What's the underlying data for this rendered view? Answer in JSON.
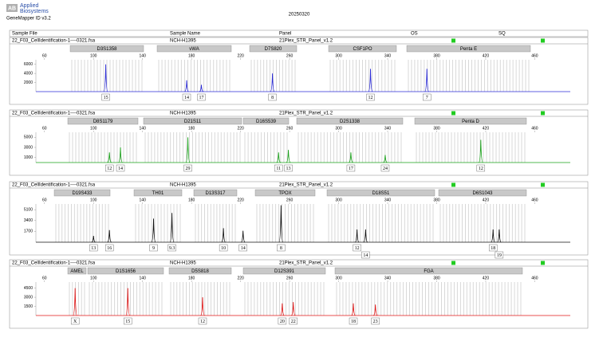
{
  "header": {
    "brand": [
      "Applied",
      "Biosystems"
    ],
    "software": "GeneMapper ID v3.2",
    "date": "20250320"
  },
  "columns": [
    "Sample File",
    "Sample Name",
    "Panel",
    "OS",
    "SQ"
  ],
  "chart_data": [
    {
      "type": "electropherogram",
      "sample_file": "22_F03_CellIdentification-1----0321.fsa",
      "sample_name": "NCH-H1395",
      "panel": "21Plex_STR_Panel_v1.2",
      "color": "#2b2bd6",
      "markers": [
        "D3S1358",
        "vWA",
        "D7S820",
        "CSF1PO",
        "Penta E"
      ],
      "xlim": [
        53,
        489
      ],
      "xticks": [
        60,
        100,
        140,
        180,
        220,
        260,
        300,
        340,
        380,
        420,
        460
      ],
      "ylim": [
        0,
        7000
      ],
      "yticks": [
        2000,
        4000,
        6000
      ],
      "peaks": [
        {
          "size": 110,
          "height": 6000,
          "allele": "15"
        },
        {
          "size": 176,
          "height": 2500,
          "allele": "14"
        },
        {
          "size": 188,
          "height": 1500,
          "allele": "17"
        },
        {
          "size": 246,
          "height": 4000,
          "allele": "8"
        },
        {
          "size": 326,
          "height": 5000,
          "allele": "12"
        },
        {
          "size": 372,
          "height": 5000,
          "allele": "7"
        }
      ]
    },
    {
      "type": "electropherogram",
      "sample_file": "22_F03_CellIdentification-1----0321.fsa",
      "sample_name": "NCH-H1395",
      "panel": "21Plex_STR_Panel_v1.2",
      "color": "#1aa01a",
      "markers": [
        "D8S1179",
        "D21S11",
        "D16S539",
        "D2S1338",
        "Penta D"
      ],
      "xlim": [
        53,
        489
      ],
      "xticks": [
        60,
        100,
        140,
        180,
        220,
        260,
        300,
        340,
        380,
        420,
        460
      ],
      "ylim": [
        0,
        6000
      ],
      "yticks": [
        1000,
        3000,
        5000
      ],
      "peaks": [
        {
          "size": 113,
          "height": 2000,
          "allele": "12"
        },
        {
          "size": 122,
          "height": 3000,
          "allele": "14"
        },
        {
          "size": 177,
          "height": 5000,
          "allele": "29"
        },
        {
          "size": 251,
          "height": 2000,
          "allele": "11"
        },
        {
          "size": 259,
          "height": 2500,
          "allele": "13"
        },
        {
          "size": 310,
          "height": 2000,
          "allele": "17"
        },
        {
          "size": 338,
          "height": 1500,
          "allele": "24"
        },
        {
          "size": 416,
          "height": 4500,
          "allele": "12"
        }
      ]
    },
    {
      "type": "electropherogram",
      "sample_file": "22_F03_CellIdentification-1----0321.fsa",
      "sample_name": "NCH-H1395",
      "panel": "21Plex_STR_Panel_v1.2",
      "color": "#111111",
      "markers": [
        "D19S433",
        "TH01",
        "D13S317",
        "TPOX",
        "D18S51",
        "D6S1043"
      ],
      "xlim": [
        53,
        489
      ],
      "xticks": [
        60,
        100,
        140,
        180,
        220,
        260,
        300,
        340,
        380,
        420,
        460
      ],
      "ylim": [
        0,
        6000
      ],
      "yticks": [
        1700,
        3400,
        5100
      ],
      "peaks": [
        {
          "size": 100,
          "height": 1000,
          "allele": "13"
        },
        {
          "size": 113,
          "height": 1900,
          "allele": "16"
        },
        {
          "size": 149,
          "height": 3700,
          "allele": "9"
        },
        {
          "size": 164,
          "height": 4600,
          "allele": "9.3"
        },
        {
          "size": 206,
          "height": 2200,
          "allele": "10"
        },
        {
          "size": 222,
          "height": 1800,
          "allele": "14"
        },
        {
          "size": 253,
          "height": 5800,
          "allele": "8"
        },
        {
          "size": 315,
          "height": 2000,
          "allele": "12"
        },
        {
          "size": 322,
          "height": 2000,
          "allele": "14"
        },
        {
          "size": 426,
          "height": 2000,
          "allele": "18"
        },
        {
          "size": 431,
          "height": 2000,
          "allele": "19"
        }
      ]
    },
    {
      "type": "electropherogram",
      "sample_file": "22_F03_CellIdentification-1----0321.fsa",
      "sample_name": "NCH-H1395",
      "panel": "21Plex_STR_Panel_v1.2",
      "color": "#e01818",
      "markers": [
        "AMEL",
        "D1S1656",
        "D5S818",
        "D12S391",
        "FGA"
      ],
      "xlim": [
        53,
        489
      ],
      "xticks": [
        60,
        100,
        140,
        180,
        220,
        260,
        300,
        340,
        380,
        420,
        460
      ],
      "ylim": [
        0,
        5500
      ],
      "yticks": [
        1500,
        3000,
        4500
      ],
      "peaks": [
        {
          "size": 85,
          "height": 4500,
          "allele": "X"
        },
        {
          "size": 128,
          "height": 4500,
          "allele": "15"
        },
        {
          "size": 189,
          "height": 3000,
          "allele": "12"
        },
        {
          "size": 254,
          "height": 2000,
          "allele": "20"
        },
        {
          "size": 263,
          "height": 2200,
          "allele": "22"
        },
        {
          "size": 312,
          "height": 2000,
          "allele": "18"
        },
        {
          "size": 330,
          "height": 1800,
          "allele": "23"
        }
      ]
    }
  ]
}
